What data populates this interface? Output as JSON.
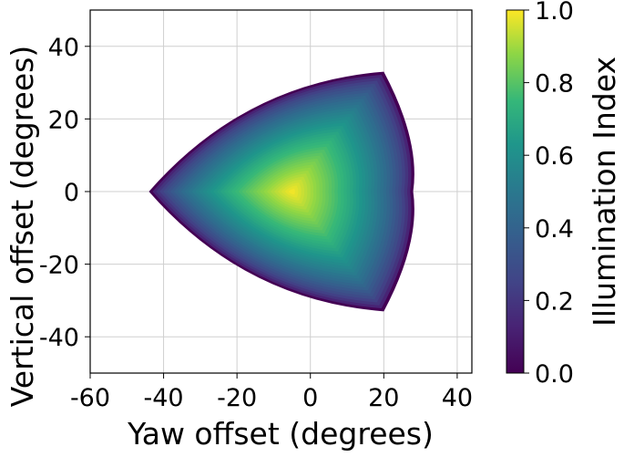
{
  "chart_data": {
    "type": "heatmap",
    "title": "",
    "xlabel": "Yaw offset (degrees)",
    "ylabel": "Vertical offset (degrees)",
    "xlim": [
      -60,
      44
    ],
    "ylim": [
      -50,
      50
    ],
    "xticks": [
      -60,
      -40,
      -20,
      0,
      20,
      40
    ],
    "yticks": [
      -40,
      -20,
      0,
      20,
      40
    ],
    "grid": true,
    "colormap": "viridis",
    "colorbar": {
      "label": "Illumination Index",
      "range": [
        0.0,
        1.0
      ],
      "ticks": [
        "0.0",
        "0.2",
        "0.4",
        "0.6",
        "0.8",
        "1.0"
      ]
    },
    "region": {
      "shape": "curved triangle (Reuleaux-like)",
      "vertices": [
        [
          -44,
          0
        ],
        [
          20,
          33
        ],
        [
          20,
          -33
        ]
      ],
      "right_bulge_x": 28,
      "peak": [
        -5,
        0
      ],
      "peak_value": 1.0,
      "edge_value": 0.0
    }
  }
}
